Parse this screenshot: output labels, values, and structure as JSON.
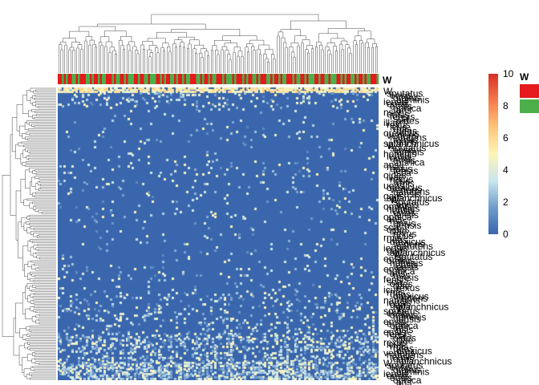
{
  "chart_data": {
    "type": "heatmap",
    "title": "",
    "xlabel": "",
    "ylabel": "",
    "annotation": {
      "title": "W",
      "legend_colors": [
        "#e41a1c",
        "#4daf4a"
      ],
      "legend_labels": [
        "",
        ""
      ],
      "column_groups_pattern": [
        0,
        0,
        1,
        0,
        1,
        0,
        0,
        1,
        1,
        0,
        1,
        0,
        0,
        0,
        1,
        1,
        0,
        1,
        0,
        0,
        1,
        0,
        1,
        1,
        0,
        0,
        0,
        1,
        0,
        1,
        1,
        0,
        0,
        1,
        0,
        1,
        1,
        1,
        0,
        0,
        1,
        0,
        0,
        1,
        1,
        0,
        1,
        1,
        1,
        0,
        0,
        1,
        0,
        1,
        0,
        0,
        1,
        1,
        0,
        1,
        0,
        0,
        1,
        0,
        1,
        1,
        0,
        0,
        0,
        1,
        1,
        0,
        1,
        0,
        0,
        1,
        0,
        1,
        1,
        0,
        0,
        0,
        1,
        0,
        1,
        1,
        1,
        0,
        1,
        0
      ]
    },
    "color_scale": {
      "min": 0,
      "max": 10,
      "ticks": [
        0,
        2,
        4,
        6,
        8,
        10
      ],
      "colors": [
        "#3a66ad",
        "#6f9ccb",
        "#c9e6ef",
        "#fdf5b8",
        "#fdc67a",
        "#f57b4a",
        "#d73027"
      ]
    },
    "row_labels_visible": [
      "W",
      "sputatus",
      "ensis",
      "ominis",
      "hominis",
      "iensis",
      "ensis",
      "ensis",
      "ophica",
      "ans",
      "nsis",
      "ensis",
      "fensis",
      "sca",
      "oides",
      "illae",
      "rexus",
      "icus",
      "rmis",
      "uens",
      "orexicus",
      "vertens",
      "natutens",
      "iensis",
      "gans",
      "splanchnicus"
    ]
  }
}
